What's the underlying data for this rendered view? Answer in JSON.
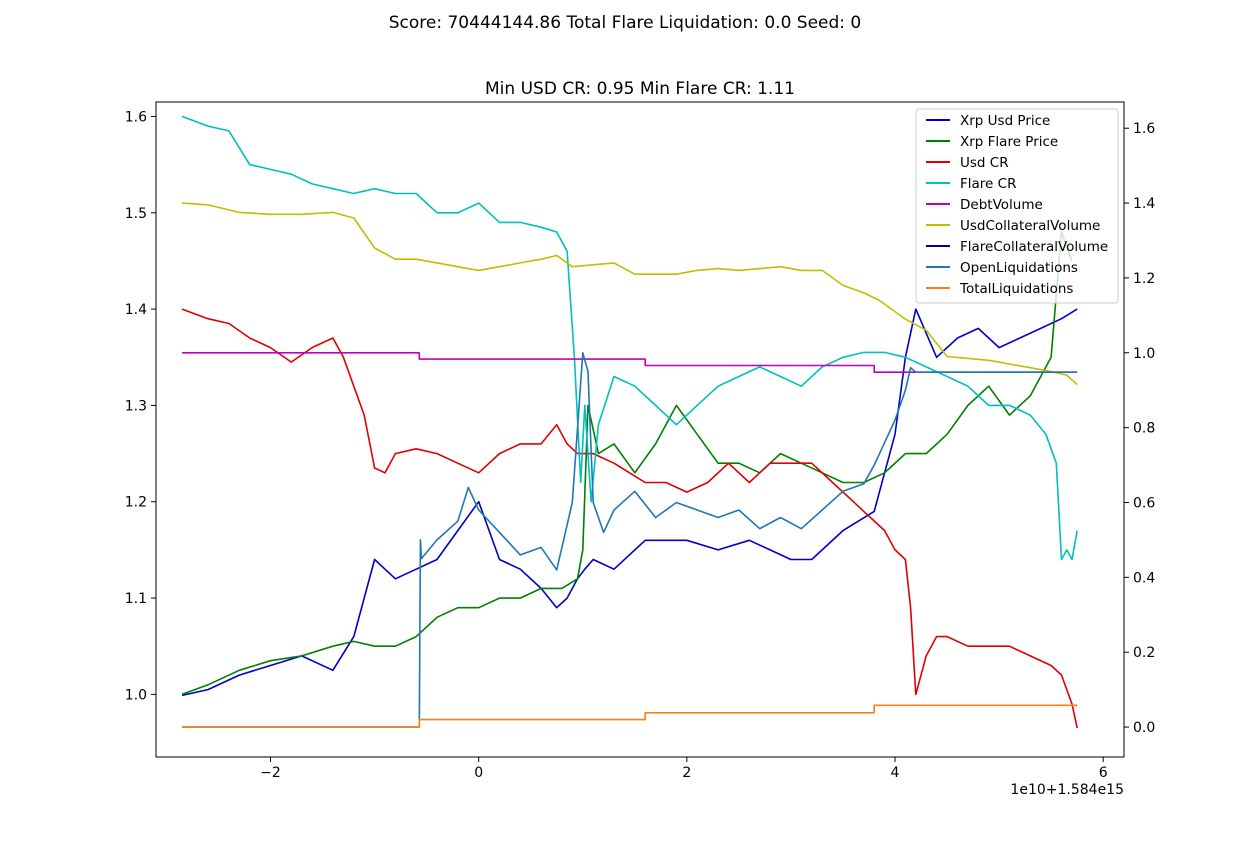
{
  "suptitle": "Score: 70444144.86 Total Flare Liquidation: 0.0 Seed: 0",
  "chart_data": {
    "type": "line",
    "title": "Min USD CR: 0.95 Min Flare CR: 1.11",
    "xlabel": "",
    "ylabel": "",
    "x_offset_text": "1e10+1.584e15",
    "xlim": [
      -3.1,
      6.2
    ],
    "ylim_left": [
      0.935,
      1.615
    ],
    "ylim_right": [
      -0.08,
      1.67
    ],
    "x_ticks": [
      -2,
      0,
      2,
      4,
      6
    ],
    "x_tick_labels": [
      "−2",
      "0",
      "2",
      "4",
      "6"
    ],
    "y_left_ticks": [
      1.0,
      1.1,
      1.2,
      1.3,
      1.4,
      1.5,
      1.6
    ],
    "y_left_tick_labels": [
      "1.0",
      "1.1",
      "1.2",
      "1.3",
      "1.4",
      "1.5",
      "1.6"
    ],
    "y_right_ticks": [
      0.0,
      0.2,
      0.4,
      0.6,
      0.8,
      1.0,
      1.2,
      1.4,
      1.6
    ],
    "y_right_tick_labels": [
      "0.0",
      "0.2",
      "0.4",
      "0.6",
      "0.8",
      "1.0",
      "1.2",
      "1.4",
      "1.6"
    ],
    "grid": false,
    "legend_position": "top-right",
    "series": [
      {
        "name": "Xrp Usd Price",
        "color": "#0000cc",
        "axis": "left",
        "x": [
          -2.85,
          -2.6,
          -2.3,
          -2.0,
          -1.7,
          -1.4,
          -1.2,
          -1.0,
          -0.8,
          -0.6,
          -0.4,
          -0.2,
          0.0,
          0.2,
          0.4,
          0.6,
          0.75,
          0.85,
          0.95,
          1.02,
          1.1,
          1.3,
          1.6,
          1.8,
          2.0,
          2.3,
          2.6,
          2.8,
          3.0,
          3.2,
          3.5,
          3.8,
          4.0,
          4.1,
          4.2,
          4.4,
          4.6,
          4.8,
          5.0,
          5.2,
          5.4,
          5.6,
          5.75
        ],
        "y": [
          0.999,
          1.005,
          1.02,
          1.03,
          1.04,
          1.025,
          1.06,
          1.14,
          1.12,
          1.13,
          1.14,
          1.17,
          1.2,
          1.14,
          1.13,
          1.11,
          1.09,
          1.1,
          1.12,
          1.13,
          1.14,
          1.13,
          1.16,
          1.16,
          1.16,
          1.15,
          1.16,
          1.15,
          1.14,
          1.14,
          1.17,
          1.19,
          1.27,
          1.35,
          1.4,
          1.35,
          1.37,
          1.38,
          1.36,
          1.37,
          1.38,
          1.39,
          1.4
        ]
      },
      {
        "name": "Xrp Flare Price",
        "color": "#008000",
        "axis": "left",
        "x": [
          -2.85,
          -2.6,
          -2.3,
          -2.0,
          -1.7,
          -1.4,
          -1.2,
          -1.0,
          -0.8,
          -0.6,
          -0.4,
          -0.2,
          0.0,
          0.2,
          0.4,
          0.6,
          0.8,
          0.95,
          1.0,
          1.05,
          1.15,
          1.3,
          1.5,
          1.7,
          1.9,
          2.1,
          2.3,
          2.5,
          2.7,
          2.9,
          3.1,
          3.3,
          3.5,
          3.7,
          3.9,
          4.1,
          4.3,
          4.5,
          4.7,
          4.9,
          5.1,
          5.3,
          5.5,
          5.6,
          5.7
        ],
        "y": [
          1.0,
          1.01,
          1.025,
          1.035,
          1.04,
          1.05,
          1.055,
          1.05,
          1.05,
          1.06,
          1.08,
          1.09,
          1.09,
          1.1,
          1.1,
          1.11,
          1.11,
          1.12,
          1.15,
          1.3,
          1.25,
          1.26,
          1.23,
          1.26,
          1.3,
          1.27,
          1.24,
          1.24,
          1.23,
          1.25,
          1.24,
          1.23,
          1.22,
          1.22,
          1.23,
          1.25,
          1.25,
          1.27,
          1.3,
          1.32,
          1.29,
          1.31,
          1.35,
          1.48,
          1.45
        ]
      },
      {
        "name": "Usd CR",
        "color": "#e00000",
        "axis": "left",
        "x": [
          -2.85,
          -2.6,
          -2.4,
          -2.2,
          -2.0,
          -1.8,
          -1.6,
          -1.4,
          -1.3,
          -1.2,
          -1.1,
          -1.0,
          -0.9,
          -0.8,
          -0.6,
          -0.4,
          -0.2,
          0.0,
          0.2,
          0.4,
          0.6,
          0.75,
          0.85,
          0.95,
          1.1,
          1.3,
          1.6,
          1.8,
          2.0,
          2.2,
          2.4,
          2.6,
          2.8,
          3.0,
          3.2,
          3.4,
          3.6,
          3.7,
          3.8,
          3.9,
          4.0,
          4.1,
          4.15,
          4.2,
          4.3,
          4.4,
          4.5,
          4.7,
          4.9,
          5.1,
          5.3,
          5.5,
          5.6,
          5.7,
          5.75
        ],
        "y": [
          1.4,
          1.39,
          1.385,
          1.37,
          1.36,
          1.345,
          1.36,
          1.37,
          1.35,
          1.32,
          1.29,
          1.235,
          1.23,
          1.25,
          1.255,
          1.25,
          1.24,
          1.23,
          1.25,
          1.26,
          1.26,
          1.28,
          1.26,
          1.25,
          1.25,
          1.24,
          1.22,
          1.22,
          1.21,
          1.22,
          1.24,
          1.22,
          1.24,
          1.24,
          1.24,
          1.22,
          1.2,
          1.19,
          1.18,
          1.17,
          1.15,
          1.14,
          1.09,
          1.0,
          1.04,
          1.06,
          1.06,
          1.05,
          1.05,
          1.05,
          1.04,
          1.03,
          1.02,
          0.99,
          0.965
        ]
      },
      {
        "name": "Flare CR",
        "color": "#00bfbf",
        "axis": "left",
        "x": [
          -2.85,
          -2.6,
          -2.4,
          -2.2,
          -2.0,
          -1.8,
          -1.6,
          -1.4,
          -1.2,
          -1.0,
          -0.8,
          -0.6,
          -0.4,
          -0.2,
          0.0,
          0.2,
          0.4,
          0.6,
          0.75,
          0.85,
          0.92,
          0.98,
          1.02,
          1.08,
          1.15,
          1.3,
          1.5,
          1.7,
          1.9,
          2.1,
          2.3,
          2.5,
          2.7,
          2.9,
          3.1,
          3.3,
          3.5,
          3.7,
          3.9,
          4.1,
          4.3,
          4.5,
          4.7,
          4.9,
          5.1,
          5.3,
          5.45,
          5.55,
          5.6,
          5.65,
          5.7,
          5.75
        ],
        "y": [
          1.6,
          1.59,
          1.585,
          1.55,
          1.545,
          1.54,
          1.53,
          1.525,
          1.52,
          1.525,
          1.52,
          1.52,
          1.5,
          1.5,
          1.51,
          1.49,
          1.49,
          1.485,
          1.48,
          1.46,
          1.35,
          1.22,
          1.3,
          1.2,
          1.28,
          1.33,
          1.32,
          1.3,
          1.28,
          1.3,
          1.32,
          1.33,
          1.34,
          1.33,
          1.32,
          1.34,
          1.35,
          1.355,
          1.355,
          1.35,
          1.34,
          1.33,
          1.32,
          1.3,
          1.3,
          1.29,
          1.27,
          1.24,
          1.14,
          1.15,
          1.14,
          1.17
        ]
      },
      {
        "name": "DebtVolume",
        "color": "#bf00bf",
        "axis": "right",
        "x": [
          -2.85,
          -0.57,
          -0.57,
          1.6,
          1.6,
          3.8,
          3.8,
          5.75
        ],
        "y": [
          1.0,
          1.0,
          0.983,
          0.983,
          0.966,
          0.966,
          0.948,
          0.948
        ]
      },
      {
        "name": "UsdCollateralVolume",
        "color": "#bfbf00",
        "axis": "right",
        "x": [
          -2.85,
          -2.6,
          -2.3,
          -2.0,
          -1.7,
          -1.4,
          -1.2,
          -1.0,
          -0.8,
          -0.6,
          -0.4,
          -0.2,
          0.0,
          0.2,
          0.4,
          0.6,
          0.75,
          0.9,
          1.1,
          1.3,
          1.5,
          1.7,
          1.9,
          2.1,
          2.3,
          2.5,
          2.7,
          2.9,
          3.1,
          3.3,
          3.5,
          3.7,
          3.85,
          3.95,
          4.1,
          4.3,
          4.5,
          4.7,
          4.9,
          5.1,
          5.3,
          5.5,
          5.65,
          5.75
        ],
        "y": [
          1.4,
          1.395,
          1.375,
          1.37,
          1.37,
          1.375,
          1.36,
          1.28,
          1.25,
          1.25,
          1.24,
          1.23,
          1.22,
          1.23,
          1.24,
          1.25,
          1.26,
          1.23,
          1.235,
          1.24,
          1.21,
          1.21,
          1.21,
          1.22,
          1.225,
          1.22,
          1.225,
          1.23,
          1.22,
          1.22,
          1.18,
          1.16,
          1.14,
          1.12,
          1.09,
          1.06,
          0.99,
          0.985,
          0.98,
          0.97,
          0.96,
          0.95,
          0.94,
          0.915
        ]
      },
      {
        "name": "FlareCollateralVolume",
        "color": "#00008b",
        "axis": "right",
        "x": [],
        "y": []
      },
      {
        "name": "OpenLiquidations",
        "color": "#1f77b4",
        "axis": "right",
        "x": [
          -2.85,
          -0.57,
          -0.56,
          -0.55,
          -0.4,
          -0.2,
          -0.1,
          0.0,
          0.2,
          0.4,
          0.6,
          0.75,
          0.9,
          1.0,
          1.05,
          1.1,
          1.2,
          1.3,
          1.5,
          1.7,
          1.9,
          2.1,
          2.3,
          2.5,
          2.7,
          2.9,
          3.1,
          3.3,
          3.5,
          3.7,
          3.8,
          3.9,
          4.0,
          4.1,
          4.15,
          4.2,
          5.75
        ],
        "y": [
          0.0,
          0.0,
          0.5,
          0.45,
          0.5,
          0.55,
          0.64,
          0.58,
          0.52,
          0.46,
          0.48,
          0.42,
          0.6,
          1.0,
          0.95,
          0.6,
          0.52,
          0.58,
          0.63,
          0.56,
          0.6,
          0.58,
          0.56,
          0.58,
          0.53,
          0.56,
          0.53,
          0.58,
          0.63,
          0.65,
          0.7,
          0.76,
          0.82,
          0.9,
          0.96,
          0.948,
          0.948
        ]
      },
      {
        "name": "TotalLiquidations",
        "color": "#ff7f0e",
        "axis": "right",
        "x": [
          -2.85,
          -0.57,
          -0.57,
          1.6,
          1.6,
          3.8,
          3.8,
          5.75
        ],
        "y": [
          0.0,
          0.0,
          0.02,
          0.02,
          0.038,
          0.038,
          0.058,
          0.058
        ]
      }
    ]
  }
}
